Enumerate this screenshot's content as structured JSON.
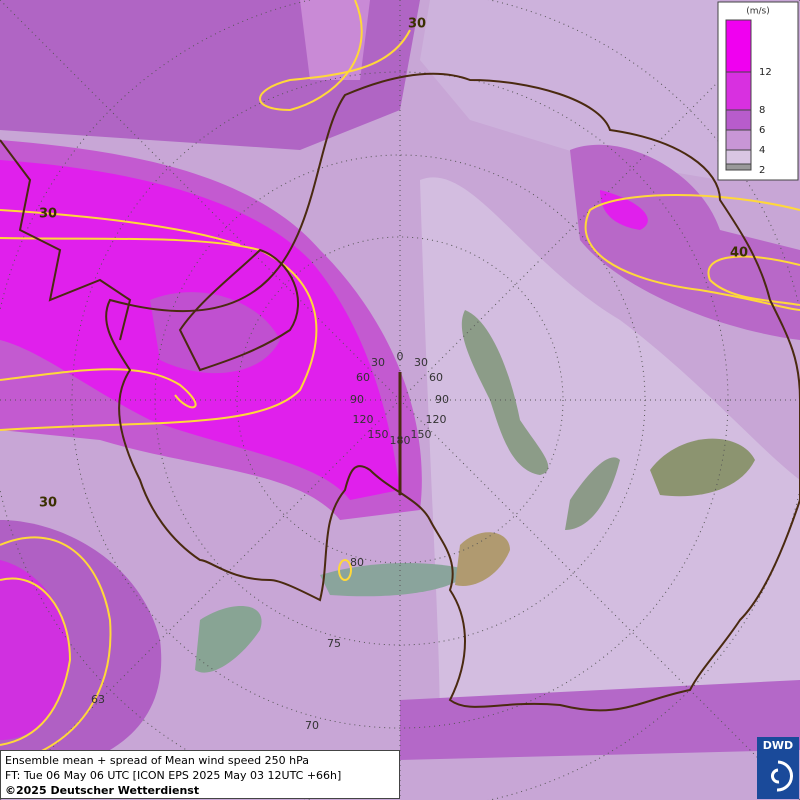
{
  "legend": {
    "unit": "(m/s)",
    "levels": [
      "12",
      "8",
      "6",
      "4",
      "2"
    ]
  },
  "contour_labels": [
    "30",
    "30",
    "40",
    "30"
  ],
  "grid_labels": [
    "0",
    "30",
    "30",
    "60",
    "60",
    "90",
    "90",
    "120",
    "120",
    "150",
    "150",
    "180",
    "80",
    "75",
    "70",
    "63"
  ],
  "footer": {
    "title": "Ensemble mean + spread of Mean wind speed 250 hPa",
    "forecast": "FT: Tue 06 May 06 UTC [ICON EPS 2025 May 03 12UTC +66h]",
    "copyright": "©2025 Deutscher Wetterdienst"
  },
  "logo": "DWD"
}
